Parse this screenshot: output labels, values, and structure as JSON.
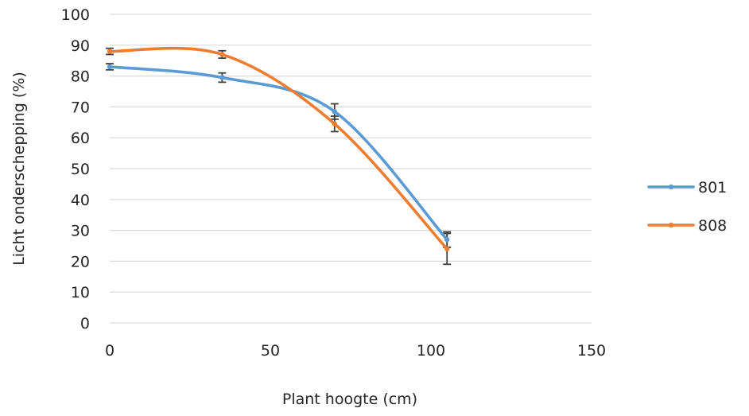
{
  "chart_data": {
    "type": "line",
    "smooth": true,
    "xlabel": "Plant hoogte (cm)",
    "ylabel": "Licht onderschepping (%)",
    "xlim": [
      0,
      150
    ],
    "ylim": [
      0,
      100
    ],
    "xticks": [
      0,
      50,
      100,
      150
    ],
    "yticks": [
      0,
      10,
      20,
      30,
      40,
      50,
      60,
      70,
      80,
      90,
      100
    ],
    "grid": "horizontal",
    "legend_position": "right",
    "series": [
      {
        "name": "801",
        "color": "#5b9bd5",
        "x": [
          0,
          35,
          70,
          105
        ],
        "y": [
          83,
          79.5,
          68.5,
          27
        ],
        "error": [
          1,
          1.5,
          2.5,
          2.5
        ]
      },
      {
        "name": "808",
        "color": "#ed7d31",
        "x": [
          0,
          35,
          70,
          105
        ],
        "y": [
          88,
          87,
          64.5,
          24
        ],
        "error": [
          1,
          1.2,
          2.5,
          5
        ]
      }
    ]
  }
}
